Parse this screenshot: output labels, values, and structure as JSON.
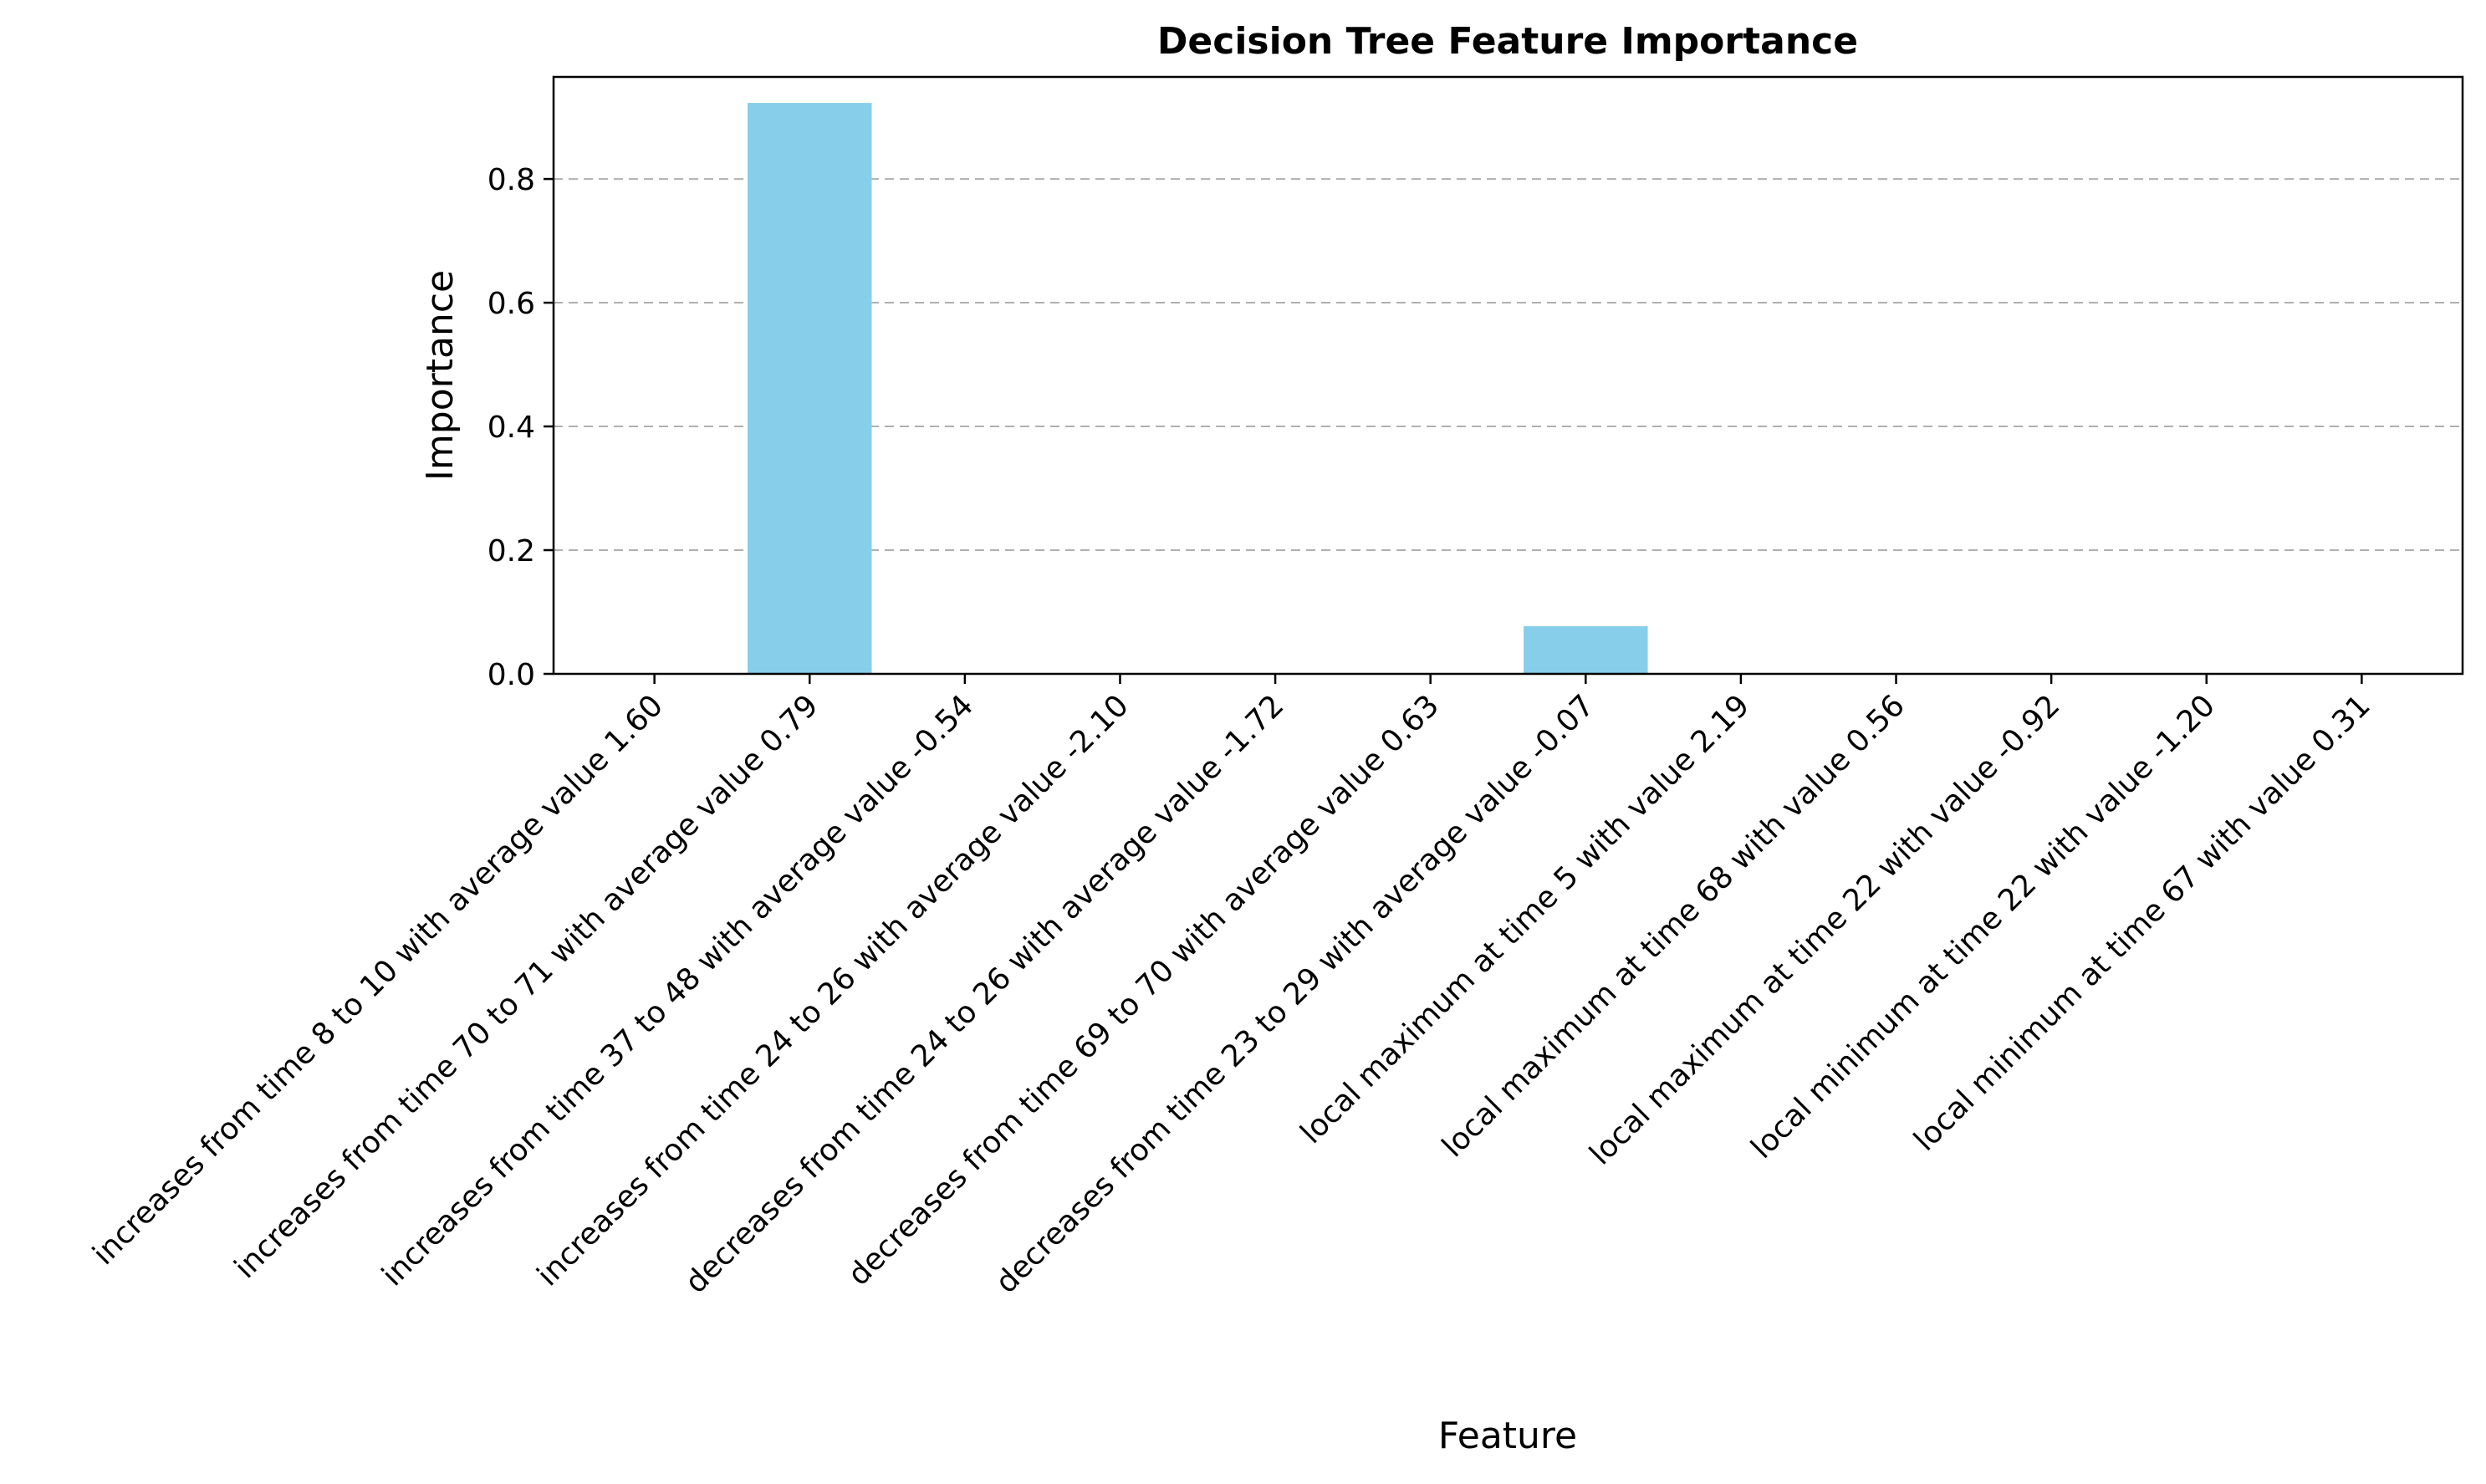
{
  "chart_data": {
    "type": "bar",
    "title": "Decision Tree Feature Importance",
    "xlabel": "Feature",
    "ylabel": "Importance",
    "ylim": [
      0,
      0.965
    ],
    "yticks": [
      0.0,
      0.2,
      0.4,
      0.6,
      0.8
    ],
    "ytick_labels": [
      "0.0",
      "0.2",
      "0.4",
      "0.6",
      "0.8"
    ],
    "grid": "y-dashed",
    "bar_color": "#87ceeb",
    "grid_color": "#b0b0b0",
    "categories": [
      "increases from time 8 to 10 with average value 1.60",
      "increases from time 70 to 71 with average value 0.79",
      "increases from time 37 to 48 with average value -0.54",
      "increases from time 24 to 26 with average value -2.10",
      "decreases from time 24 to 26 with average value -1.72",
      "decreases from time 69 to 70 with average value 0.63",
      "decreases from time 23 to 29 with average value -0.07",
      "local maximum at time 5 with value 2.19",
      "local maximum at time 68 with value 0.56",
      "local maximum at time 22 with value -0.92",
      "local minimum at time 22 with value -1.20",
      "local minimum at time 67 with value 0.31"
    ],
    "values": [
      0,
      0.923,
      0,
      0,
      0,
      0,
      0.077,
      0,
      0,
      0,
      0,
      0
    ]
  }
}
